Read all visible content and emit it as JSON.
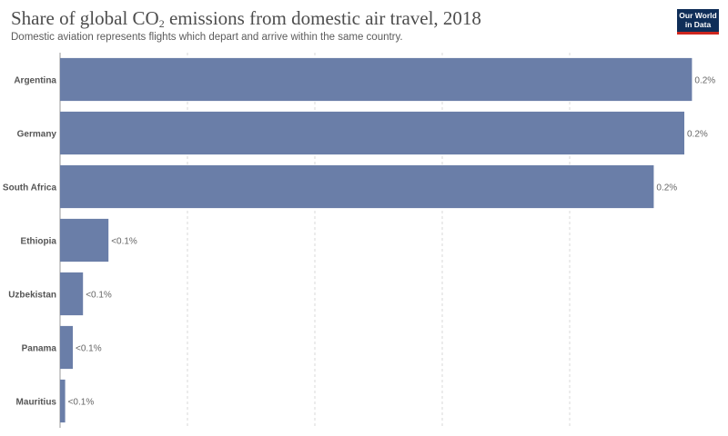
{
  "header": {
    "title_prefix": "Share of global CO",
    "title_subscript": "2",
    "title_suffix": " emissions from domestic air travel, 2018",
    "subtitle": "Domestic aviation represents flights which depart and arrive within the same country.",
    "logo_line1": "Our World",
    "logo_line2": "in Data"
  },
  "colors": {
    "bar": "#6a7ea8",
    "logo_bg": "#0f2e58",
    "logo_accent": "#ce261e"
  },
  "chart_data": {
    "type": "bar",
    "orientation": "horizontal",
    "title": "Share of global CO₂ emissions from domestic air travel, 2018",
    "subtitle": "Domestic aviation represents flights which depart and arrive within the same country.",
    "categories": [
      "Argentina",
      "Germany",
      "South Africa",
      "Ethiopia",
      "Uzbekistan",
      "Panama",
      "Mauritius"
    ],
    "values": [
      0.248,
      0.245,
      0.233,
      0.019,
      0.009,
      0.005,
      0.002
    ],
    "value_labels": [
      "0.2%",
      "0.2%",
      "0.2%",
      "<0.1%",
      "<0.1%",
      "<0.1%",
      "<0.1%"
    ],
    "unit": "%",
    "xlim": [
      0,
      0.25
    ],
    "grid": "vertical-dashed",
    "legend": "none"
  }
}
